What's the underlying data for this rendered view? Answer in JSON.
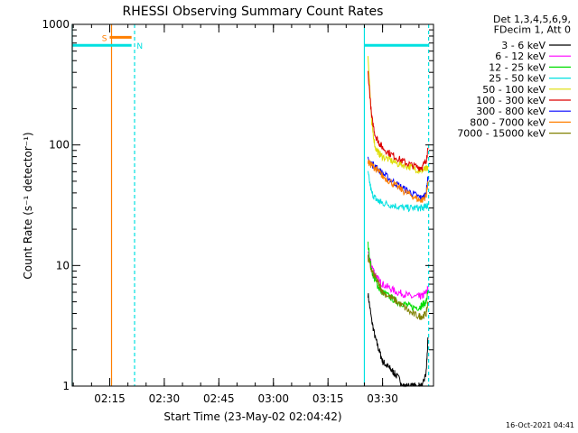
{
  "chart_data": {
    "type": "line",
    "title": "RHESSI Observing Summary Count Rates",
    "xlabel": "Start Time (23-May-02 02:04:42)",
    "ylabel": "Count Rate (s⁻¹ detector⁻¹)",
    "y_scale": "log",
    "ylim": [
      1,
      1000
    ],
    "xlim": [
      "02:04:42",
      "03:44:00"
    ],
    "x_ticks": [
      "02:15",
      "02:30",
      "02:45",
      "03:00",
      "03:15",
      "03:30"
    ],
    "y_ticks": [
      "1",
      "10",
      "100",
      "1000"
    ],
    "legend_header": [
      "Det 1,3,4,5,6,9,",
      "FDecim 1, Att 0"
    ],
    "legend_position": "right",
    "timestamp": "16-Oct-2021 04:41",
    "flags": [
      {
        "label": "S",
        "color": "#ff7f00",
        "start": "02:15:00",
        "end": "02:21:00",
        "level": 780
      },
      {
        "label": "N",
        "color": "#00e0e0",
        "start": "02:21:40",
        "end": "02:21:40",
        "level": 670
      }
    ],
    "bars": [
      {
        "color": "#00e0e0",
        "start": "02:04:42",
        "end": "02:21:00",
        "level": 670
      },
      {
        "color": "#00e0e0",
        "start": "03:25:00",
        "end": "03:42:30",
        "level": 670
      }
    ],
    "vlines": [
      {
        "t": "02:04:42",
        "color": "#00e0e0",
        "style": "solid"
      },
      {
        "t": "02:15:30",
        "color": "#ff7f00",
        "style": "solid"
      },
      {
        "t": "02:21:50",
        "color": "#00e0e0",
        "style": "dashed"
      },
      {
        "t": "03:25:00",
        "color": "#00e0e0",
        "style": "solid"
      },
      {
        "t": "03:42:40",
        "color": "#00e0e0",
        "style": "dashed"
      }
    ],
    "series": [
      {
        "name": "3 - 6 keV",
        "color": "#000000",
        "x": [
          "03:26:00",
          "03:27:00",
          "03:28:00",
          "03:29:00",
          "03:30:00",
          "03:31:00",
          "03:32:00",
          "03:33:00",
          "03:34:00",
          "03:36:00",
          "03:38:00",
          "03:40:00",
          "03:41:00",
          "03:42:00",
          "03:42:30"
        ],
        "y": [
          5.8,
          3.5,
          2.5,
          2.0,
          1.6,
          1.5,
          1.4,
          1.3,
          1.2,
          1.0,
          1.0,
          1.0,
          1.0,
          1.3,
          2.5
        ]
      },
      {
        "name": "6 - 12 keV",
        "color": "#ff00ff",
        "x": [
          "03:26:00",
          "03:27:00",
          "03:28:00",
          "03:29:00",
          "03:30:00",
          "03:32:00",
          "03:34:00",
          "03:36:00",
          "03:38:00",
          "03:40:00",
          "03:41:00",
          "03:42:00",
          "03:42:30"
        ],
        "y": [
          12.5,
          10.0,
          8.5,
          7.5,
          7.0,
          6.5,
          6.0,
          5.8,
          5.5,
          5.5,
          5.6,
          6.0,
          6.5
        ]
      },
      {
        "name": "12 - 25 keV",
        "color": "#00dd00",
        "x": [
          "03:26:00",
          "03:27:00",
          "03:28:00",
          "03:29:00",
          "03:30:00",
          "03:32:00",
          "03:34:00",
          "03:36:00",
          "03:38:00",
          "03:40:00",
          "03:41:00",
          "03:42:00",
          "03:42:30"
        ],
        "y": [
          15.0,
          9.0,
          7.5,
          6.5,
          6.0,
          5.5,
          5.0,
          4.8,
          4.5,
          4.5,
          4.7,
          5.0,
          6.0
        ]
      },
      {
        "name": "25 - 50 keV",
        "color": "#00e0e0",
        "x": [
          "03:26:00",
          "03:27:00",
          "03:28:00",
          "03:29:00",
          "03:30:00",
          "03:32:00",
          "03:34:00",
          "03:36:00",
          "03:38:00",
          "03:40:00",
          "03:41:00",
          "03:42:00",
          "03:42:30"
        ],
        "y": [
          58,
          40,
          36,
          34,
          33,
          32,
          31,
          30,
          30,
          30,
          30,
          31,
          32
        ]
      },
      {
        "name": "50 - 100 keV",
        "color": "#dddd00",
        "x": [
          "03:26:00",
          "03:27:00",
          "03:28:00",
          "03:29:00",
          "03:30:00",
          "03:32:00",
          "03:34:00",
          "03:36:00",
          "03:38:00",
          "03:40:00",
          "03:41:00",
          "03:42:00",
          "03:42:30"
        ],
        "y": [
          560,
          150,
          95,
          85,
          80,
          75,
          70,
          68,
          65,
          62,
          62,
          63,
          64
        ]
      },
      {
        "name": "100 - 300 keV",
        "color": "#dd0000",
        "x": [
          "03:26:00",
          "03:27:00",
          "03:28:00",
          "03:29:00",
          "03:30:00",
          "03:32:00",
          "03:34:00",
          "03:36:00",
          "03:38:00",
          "03:40:00",
          "03:41:00",
          "03:42:00",
          "03:42:30"
        ],
        "y": [
          400,
          170,
          120,
          105,
          95,
          85,
          78,
          72,
          68,
          65,
          66,
          75,
          92
        ]
      },
      {
        "name": "300 - 800 keV",
        "color": "#0000ff",
        "x": [
          "03:26:00",
          "03:27:00",
          "03:28:00",
          "03:29:00",
          "03:30:00",
          "03:32:00",
          "03:34:00",
          "03:36:00",
          "03:38:00",
          "03:40:00",
          "03:41:00",
          "03:42:00",
          "03:42:30"
        ],
        "y": [
          75,
          70,
          66,
          62,
          58,
          52,
          47,
          43,
          40,
          37,
          36,
          40,
          55
        ]
      },
      {
        "name": "800 - 7000 keV",
        "color": "#ff7f00",
        "x": [
          "03:26:00",
          "03:27:00",
          "03:28:00",
          "03:29:00",
          "03:30:00",
          "03:32:00",
          "03:34:00",
          "03:36:00",
          "03:38:00",
          "03:40:00",
          "03:41:00",
          "03:42:00",
          "03:42:30"
        ],
        "y": [
          72,
          68,
          64,
          60,
          55,
          50,
          45,
          41,
          38,
          35,
          35,
          38,
          50
        ]
      },
      {
        "name": "7000 - 15000 keV",
        "color": "#808000",
        "x": [
          "03:26:00",
          "03:27:00",
          "03:28:00",
          "03:29:00",
          "03:30:00",
          "03:32:00",
          "03:34:00",
          "03:36:00",
          "03:38:00",
          "03:40:00",
          "03:41:00",
          "03:42:00",
          "03:42:30"
        ],
        "y": [
          11.5,
          9.0,
          8.0,
          7.0,
          6.0,
          5.5,
          5.0,
          4.5,
          4.0,
          3.8,
          3.8,
          4.0,
          5.0
        ]
      }
    ]
  }
}
